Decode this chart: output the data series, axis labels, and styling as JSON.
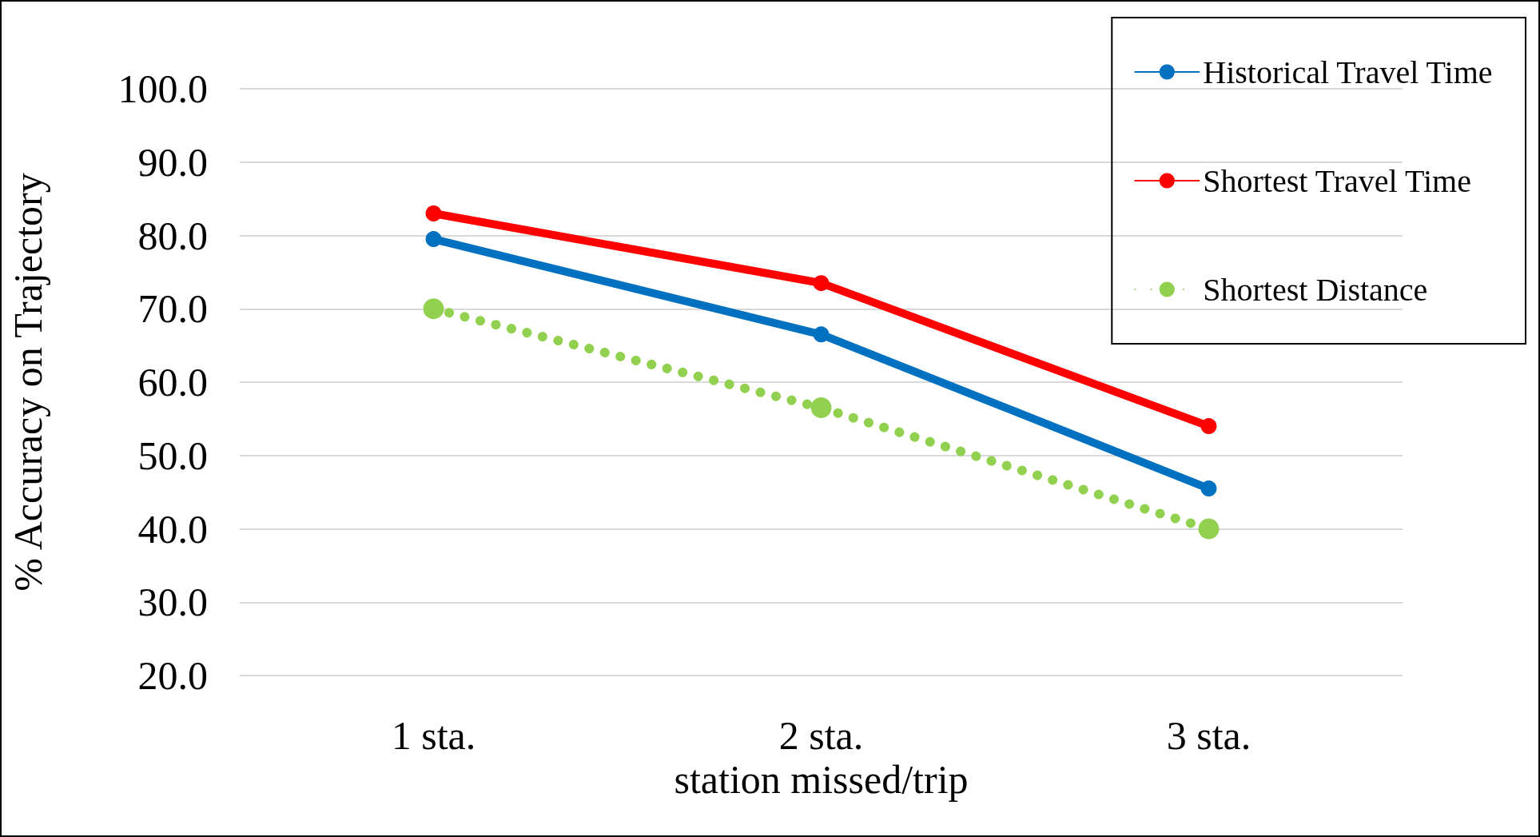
{
  "chart_data": {
    "type": "line",
    "xlabel": "station missed/trip",
    "ylabel": "% Accuracy on Trajectory",
    "categories": [
      "1 sta.",
      "2 sta.",
      "3 sta."
    ],
    "series": [
      {
        "name": "Historical Travel Time",
        "color": "#0070c0",
        "values": [
          79.5,
          66.5,
          45.5
        ],
        "line_style": "solid"
      },
      {
        "name": "Shortest Travel Time",
        "color": "#ff0000",
        "values": [
          83.0,
          73.5,
          54.0
        ],
        "line_style": "solid"
      },
      {
        "name": "Shortest Distance",
        "color": "#92d050",
        "values": [
          70.0,
          56.5,
          40.0
        ],
        "line_style": "dotted"
      }
    ],
    "ylim": [
      20,
      100
    ],
    "yticks": [
      {
        "value": 20,
        "label": "20.0"
      },
      {
        "value": 30,
        "label": "30.0"
      },
      {
        "value": 40,
        "label": "40.0"
      },
      {
        "value": 50,
        "label": "50.0"
      },
      {
        "value": 60,
        "label": "60.0"
      },
      {
        "value": 70,
        "label": "70.0"
      },
      {
        "value": 80,
        "label": "80.0"
      },
      {
        "value": 90,
        "label": "90.0"
      },
      {
        "value": 100,
        "label": "100.0"
      }
    ],
    "grid": "y",
    "legend": "top right",
    "marker": "circle"
  }
}
